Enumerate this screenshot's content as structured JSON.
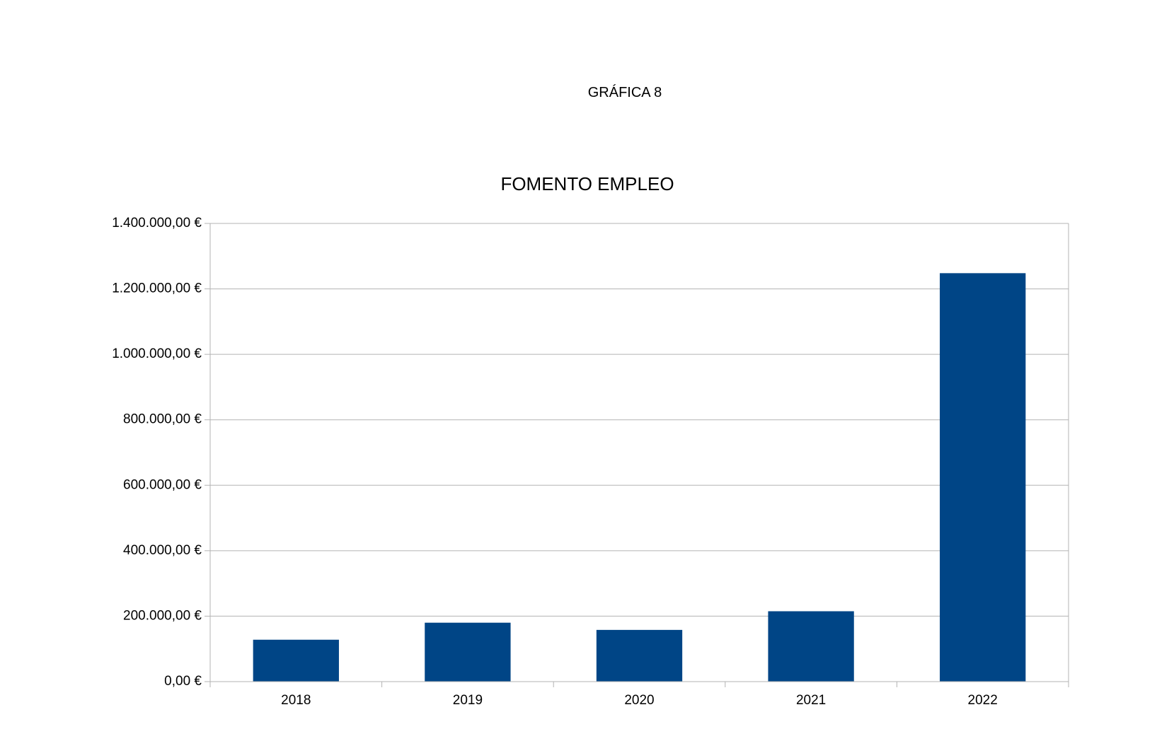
{
  "page": {
    "heading": "GRÁFICA 8"
  },
  "chart_data": {
    "type": "bar",
    "title": "FOMENTO EMPLEO",
    "categories": [
      "2018",
      "2019",
      "2020",
      "2021",
      "2022"
    ],
    "values": [
      128000,
      180000,
      158000,
      215000,
      1248000
    ],
    "ylim": [
      0,
      1400000
    ],
    "y_ticks": [
      0,
      200000,
      400000,
      600000,
      800000,
      1000000,
      1200000,
      1400000
    ],
    "y_tick_labels": [
      "0,00 €",
      "200.000,00 €",
      "400.000,00 €",
      "600.000,00 €",
      "800.000,00 €",
      "1.000.000,00 €",
      "1.200.000,00 €",
      "1.400.000,00 €"
    ],
    "xlabel": "",
    "ylabel": "",
    "grid": true,
    "legend": "none",
    "bar_color": "#004586",
    "grid_color": "#b3b3b3"
  }
}
